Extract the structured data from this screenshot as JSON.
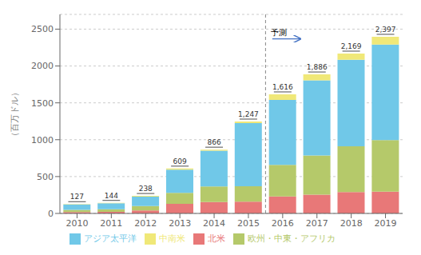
{
  "chart_data": {
    "type": "bar",
    "stacked": true,
    "grid": true,
    "legend": "bottom",
    "ylabel": "（百万ドル）",
    "categories": [
      "2010",
      "2011",
      "2012",
      "2013",
      "2014",
      "2015",
      "2016",
      "2017",
      "2018",
      "2019"
    ],
    "series": [
      {
        "name": "北米",
        "color": "#e87878",
        "values": [
          20,
          22,
          40,
          130,
          155,
          160,
          230,
          255,
          290,
          295
        ]
      },
      {
        "name": "欧州・中東・アフリカ",
        "color": "#b5c96a",
        "values": [
          30,
          35,
          60,
          150,
          210,
          210,
          430,
          530,
          620,
          700
        ]
      },
      {
        "name": "アジア太平洋",
        "color": "#70c8e8",
        "values": [
          72,
          82,
          128,
          315,
          485,
          855,
          880,
          1020,
          1175,
          1295
        ]
      },
      {
        "name": "中南米",
        "color": "#f0e878",
        "values": [
          5,
          5,
          10,
          14,
          16,
          22,
          76,
          81,
          84,
          107
        ]
      }
    ],
    "totals": [
      127,
      144,
      238,
      609,
      866,
      1247,
      1616,
      1886,
      2169,
      2397
    ],
    "total_labels": [
      "127",
      "144",
      "238",
      "609",
      "866",
      "1,247",
      "1,616",
      "1,886",
      "2,169",
      "2,397"
    ],
    "annotations": [
      {
        "text": "予測",
        "x": "2016",
        "y": 2400
      }
    ],
    "ylim": [
      0,
      2700
    ],
    "yticks": [
      0,
      500,
      1000,
      1500,
      2000,
      2500
    ]
  }
}
